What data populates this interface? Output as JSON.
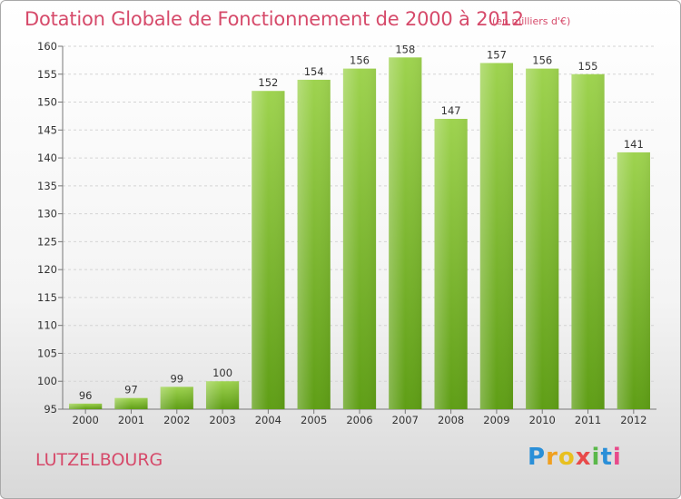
{
  "header": {
    "title": "Dotation Globale de Fonctionnement de 2000 à 2012",
    "subtitle": "(en milliers d'€)"
  },
  "footer": {
    "place": "LUTZELBOURG",
    "logo_letters": [
      "P",
      "r",
      "o",
      "x",
      "i",
      "t",
      "i"
    ]
  },
  "colors": {
    "title": "#d64a6a",
    "bar_top": "#9ed34f",
    "bar_bottom": "#5f9e16"
  },
  "chart_data": {
    "type": "bar",
    "title": "Dotation Globale de Fonctionnement de 2000 à 2012",
    "subtitle": "(en milliers d'€)",
    "categories": [
      "2000",
      "2001",
      "2002",
      "2003",
      "2004",
      "2005",
      "2006",
      "2007",
      "2008",
      "2009",
      "2010",
      "2011",
      "2012"
    ],
    "values": [
      96,
      97,
      99,
      100,
      152,
      154,
      156,
      158,
      147,
      157,
      156,
      155,
      141
    ],
    "ylim": [
      95,
      160
    ],
    "yticks": [
      95,
      100,
      105,
      110,
      115,
      120,
      125,
      130,
      135,
      140,
      145,
      150,
      155,
      160
    ],
    "grid": true,
    "legend": "none"
  }
}
